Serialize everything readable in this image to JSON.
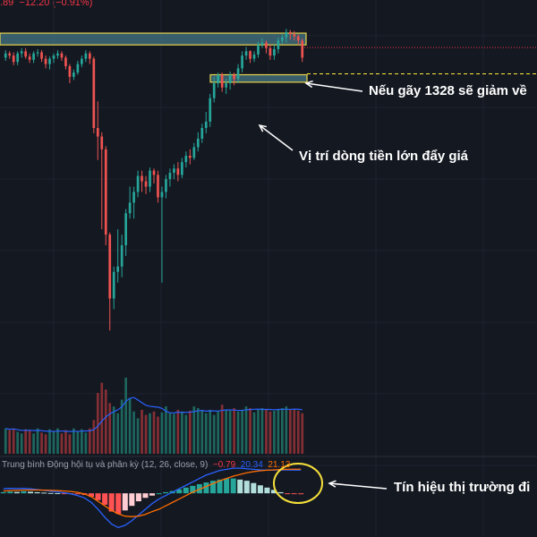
{
  "header": {
    "price_change_partial": ".89",
    "change": "−12.20 (−0.91%)"
  },
  "macd": {
    "name": "Trung bình Động hội tụ và phân kỳ",
    "params": "(12, 26, close, 9)",
    "histogram_value": "−0.79",
    "macd_value": "20.34",
    "signal_value": "21.13",
    "colors": {
      "histogram": "#f23645",
      "macd": "#2962ff",
      "signal": "#ff6d00",
      "text": "#9aa0ac"
    }
  },
  "annotations": {
    "breakdown": "Nếu gãy 1328 sẽ giảm về",
    "money_flow": "Vị trí dòng tiền lớn đẩy giá",
    "market_signal": "Tín hiệu thị trường đi"
  },
  "colors": {
    "background": "#141821",
    "up": "#26a69a",
    "down": "#ef5350",
    "zone_fill": "#3e6b78",
    "zone_border": "#e8d54a",
    "circle": "#f5e03a",
    "dashed_line": "#ffeb3b",
    "dotted_line": "#f23645"
  },
  "chart_data": {
    "type": "candlestick",
    "price_series": {
      "opens": [
        1336,
        1340,
        1338,
        1332,
        1340,
        1342,
        1337,
        1334,
        1340,
        1341,
        1335,
        1330,
        1335,
        1338,
        1340,
        1336,
        1328,
        1318,
        1322,
        1330,
        1335,
        1340,
        1335,
        1270,
        1262,
        1250,
        1170,
        1110,
        1135,
        1140,
        1160,
        1190,
        1200,
        1210,
        1225,
        1220,
        1215,
        1230,
        1226,
        1205,
        1210,
        1222,
        1228,
        1232,
        1226,
        1238,
        1244,
        1242,
        1252,
        1260,
        1270,
        1276,
        1298,
        1312,
        1320,
        1308,
        1312,
        1320,
        1316,
        1326,
        1338,
        1342,
        1335,
        1339,
        1348,
        1350,
        1345,
        1338,
        1344,
        1352,
        1355,
        1360,
        1358,
        1356,
        1352
      ],
      "closes": [
        1340,
        1338,
        1332,
        1340,
        1342,
        1337,
        1334,
        1340,
        1341,
        1335,
        1330,
        1335,
        1338,
        1340,
        1336,
        1328,
        1318,
        1322,
        1330,
        1335,
        1340,
        1335,
        1270,
        1262,
        1250,
        1170,
        1110,
        1135,
        1140,
        1160,
        1190,
        1200,
        1210,
        1225,
        1220,
        1215,
        1230,
        1226,
        1205,
        1210,
        1222,
        1228,
        1232,
        1226,
        1238,
        1244,
        1242,
        1252,
        1260,
        1270,
        1276,
        1298,
        1312,
        1320,
        1308,
        1312,
        1320,
        1316,
        1326,
        1338,
        1342,
        1335,
        1339,
        1348,
        1350,
        1345,
        1338,
        1344,
        1352,
        1355,
        1360,
        1358,
        1356,
        1352,
        1336
      ],
      "highs": [
        1343,
        1342,
        1341,
        1342,
        1345,
        1345,
        1340,
        1342,
        1344,
        1343,
        1338,
        1337,
        1340,
        1343,
        1342,
        1338,
        1330,
        1325,
        1333,
        1338,
        1343,
        1342,
        1337,
        1295,
        1266,
        1253,
        1172,
        1140,
        1175,
        1170,
        1194,
        1215,
        1215,
        1230,
        1230,
        1225,
        1233,
        1232,
        1230,
        1215,
        1226,
        1232,
        1236,
        1238,
        1242,
        1248,
        1250,
        1256,
        1266,
        1274,
        1285,
        1302,
        1318,
        1322,
        1322,
        1316,
        1323,
        1322,
        1330,
        1342,
        1346,
        1343,
        1342,
        1351,
        1354,
        1352,
        1348,
        1348,
        1355,
        1358,
        1363,
        1362,
        1361,
        1358,
        1354
      ],
      "lows": [
        1333,
        1335,
        1329,
        1329,
        1336,
        1335,
        1331,
        1331,
        1337,
        1332,
        1326,
        1325,
        1331,
        1335,
        1333,
        1325,
        1312,
        1315,
        1320,
        1327,
        1332,
        1330,
        1265,
        1240,
        1175,
        1160,
        1080,
        1100,
        1125,
        1130,
        1150,
        1185,
        1185,
        1205,
        1210,
        1208,
        1210,
        1218,
        1200,
        1125,
        1204,
        1215,
        1222,
        1220,
        1223,
        1233,
        1236,
        1240,
        1248,
        1256,
        1265,
        1271,
        1294,
        1308,
        1304,
        1302,
        1306,
        1310,
        1312,
        1322,
        1334,
        1331,
        1332,
        1336,
        1345,
        1340,
        1334,
        1334,
        1340,
        1349,
        1350,
        1353,
        1352,
        1348,
        1332
      ],
      "volumes": [
        150,
        140,
        150,
        130,
        120,
        145,
        140,
        120,
        150,
        125,
        115,
        145,
        130,
        150,
        120,
        140,
        115,
        150,
        130,
        145,
        125,
        150,
        200,
        360,
        420,
        380,
        300,
        280,
        240,
        320,
        450,
        330,
        250,
        210,
        260,
        230,
        240,
        250,
        220,
        245,
        280,
        240,
        235,
        260,
        250,
        230,
        255,
        280,
        270,
        260,
        240,
        260,
        230,
        250,
        290,
        260,
        255,
        270,
        250,
        260,
        280,
        270,
        245,
        260,
        270,
        265,
        250,
        255,
        265,
        270,
        280,
        265,
        260,
        255,
        240
      ],
      "ylim": [
        1050,
        1375
      ]
    },
    "levels": [
      1328
    ],
    "zones": [
      {
        "label": "resistance",
        "top": 1359,
        "bottom": 1348
      },
      {
        "label": "support",
        "top": 1320,
        "bottom": 1313
      }
    ],
    "macd_series": {
      "histogram": [
        1.0,
        1.5,
        1.2,
        1.8,
        1.4,
        1.0,
        0.6,
        0.3,
        0.1,
        -0.2,
        -0.4,
        -0.8,
        -1.5,
        -3,
        -6,
        -10,
        -16,
        -18,
        -15,
        -11,
        -7,
        -4,
        -2,
        0,
        1,
        2,
        3.5,
        5,
        6.5,
        8,
        9.5,
        11,
        12,
        13,
        13,
        12,
        11,
        9,
        7,
        5,
        3,
        1,
        -0.2,
        -0.5,
        -0.8
      ],
      "macd": [
        4,
        4.3,
        4.1,
        4.3,
        3.9,
        3.3,
        2.6,
        1.8,
        1.2,
        0.4,
        -0.5,
        -2,
        -4,
        -8,
        -14,
        -21,
        -27,
        -30,
        -28,
        -24,
        -19,
        -14,
        -9,
        -5,
        -2,
        1,
        4,
        7,
        10,
        13,
        16,
        18,
        20,
        21,
        22,
        22,
        21.5,
        21,
        20.5,
        20.3,
        20.3,
        20.4,
        20.4,
        20.3,
        20.34
      ],
      "signal": [
        2,
        2.4,
        2.6,
        2.8,
        2.9,
        2.9,
        2.8,
        2.6,
        2.4,
        2.0,
        1.6,
        0.8,
        -0.5,
        -3,
        -7,
        -11,
        -15,
        -18,
        -20,
        -20.5,
        -20,
        -18.5,
        -16,
        -14,
        -11,
        -8,
        -5,
        -2,
        1,
        3.5,
        6,
        8.5,
        11,
        13,
        15,
        16.5,
        18,
        19,
        19.7,
        20.2,
        20.5,
        20.8,
        21,
        21.1,
        21.13
      ],
      "ylim": [
        -32,
        26
      ]
    }
  }
}
